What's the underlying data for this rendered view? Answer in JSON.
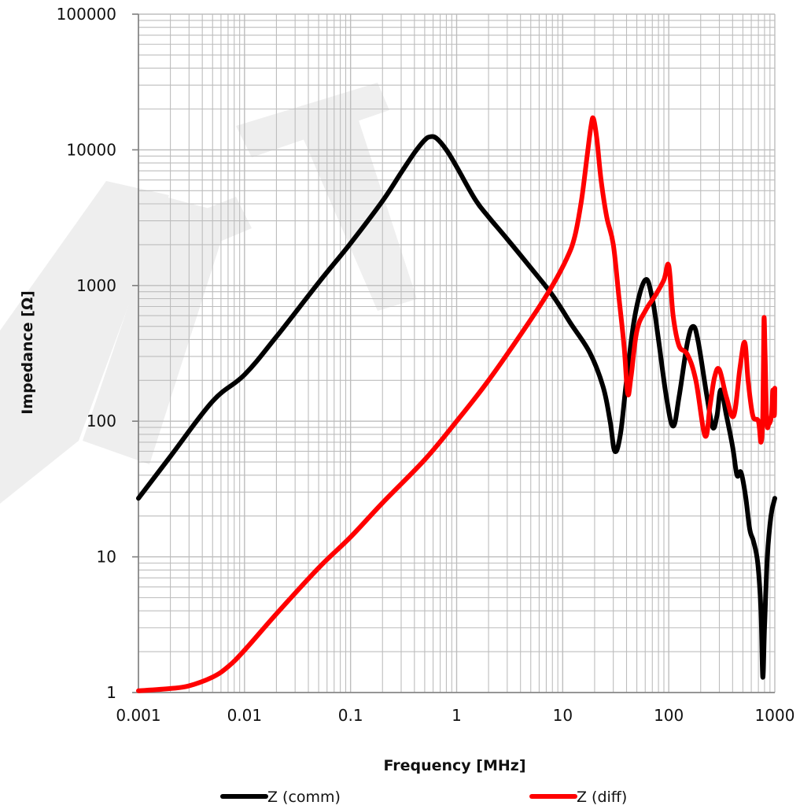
{
  "chart_data": {
    "type": "line",
    "x_scale": "log",
    "y_scale": "log",
    "xlabel": "Frequency [MHz]",
    "ylabel": "Impedance [Ω]",
    "xlim": [
      0.001,
      1000
    ],
    "ylim": [
      1,
      100000
    ],
    "x_ticks": [
      "0.001",
      "0.01",
      "0.1",
      "1",
      "10",
      "100",
      "1000"
    ],
    "y_ticks": [
      "1",
      "10",
      "100",
      "1000",
      "10000",
      "100000"
    ],
    "grid": true,
    "legend_position": "bottom",
    "watermark": "DRAFT",
    "series": [
      {
        "name": "Z (comm)",
        "color": "#000000",
        "points": [
          [
            0.001,
            27
          ],
          [
            0.002,
            55
          ],
          [
            0.005,
            140
          ],
          [
            0.01,
            220
          ],
          [
            0.02,
            420
          ],
          [
            0.05,
            1050
          ],
          [
            0.1,
            2050
          ],
          [
            0.2,
            4200
          ],
          [
            0.3,
            6800
          ],
          [
            0.4,
            9500
          ],
          [
            0.5,
            11800
          ],
          [
            0.57,
            12500
          ],
          [
            0.65,
            12100
          ],
          [
            0.8,
            10000
          ],
          [
            1,
            7500
          ],
          [
            1.5,
            4300
          ],
          [
            2,
            3200
          ],
          [
            3,
            2200
          ],
          [
            5,
            1350
          ],
          [
            8,
            850
          ],
          [
            12,
            520
          ],
          [
            18,
            320
          ],
          [
            24,
            180
          ],
          [
            28,
            100
          ],
          [
            31,
            60
          ],
          [
            35,
            80
          ],
          [
            40,
            200
          ],
          [
            48,
            600
          ],
          [
            60,
            1100
          ],
          [
            70,
            800
          ],
          [
            80,
            400
          ],
          [
            95,
            150
          ],
          [
            110,
            92
          ],
          [
            125,
            150
          ],
          [
            150,
            380
          ],
          [
            170,
            500
          ],
          [
            190,
            380
          ],
          [
            230,
            150
          ],
          [
            260,
            90
          ],
          [
            285,
            110
          ],
          [
            310,
            170
          ],
          [
            350,
            110
          ],
          [
            400,
            65
          ],
          [
            440,
            40
          ],
          [
            480,
            42
          ],
          [
            530,
            28
          ],
          [
            580,
            16
          ],
          [
            630,
            13
          ],
          [
            690,
            9
          ],
          [
            740,
            4
          ],
          [
            770,
            1.3
          ],
          [
            800,
            3
          ],
          [
            850,
            10
          ],
          [
            920,
            20
          ],
          [
            1000,
            27
          ]
        ]
      },
      {
        "name": "Z (diff)",
        "color": "#ff0000",
        "points": [
          [
            0.001,
            1.03
          ],
          [
            0.002,
            1.07
          ],
          [
            0.003,
            1.12
          ],
          [
            0.005,
            1.3
          ],
          [
            0.007,
            1.55
          ],
          [
            0.01,
            2.05
          ],
          [
            0.02,
            3.8
          ],
          [
            0.05,
            8.3
          ],
          [
            0.1,
            14
          ],
          [
            0.2,
            25
          ],
          [
            0.5,
            52
          ],
          [
            1,
            100
          ],
          [
            2,
            200
          ],
          [
            5,
            560
          ],
          [
            8,
            1000
          ],
          [
            11,
            1600
          ],
          [
            13,
            2300
          ],
          [
            15,
            4200
          ],
          [
            17,
            9000
          ],
          [
            18.5,
            15000
          ],
          [
            19.5,
            17000
          ],
          [
            21,
            12000
          ],
          [
            23,
            6000
          ],
          [
            26,
            3200
          ],
          [
            30,
            2000
          ],
          [
            34,
            800
          ],
          [
            38,
            350
          ],
          [
            41,
            160
          ],
          [
            44,
            210
          ],
          [
            50,
            460
          ],
          [
            60,
            650
          ],
          [
            75,
            850
          ],
          [
            90,
            1100
          ],
          [
            100,
            1400
          ],
          [
            110,
            600
          ],
          [
            125,
            360
          ],
          [
            150,
            310
          ],
          [
            180,
            200
          ],
          [
            220,
            78
          ],
          [
            245,
            130
          ],
          [
            270,
            210
          ],
          [
            300,
            240
          ],
          [
            350,
            150
          ],
          [
            410,
            110
          ],
          [
            470,
            250
          ],
          [
            520,
            380
          ],
          [
            560,
            200
          ],
          [
            620,
            110
          ],
          [
            700,
            100
          ],
          [
            740,
            70
          ],
          [
            770,
            110
          ],
          [
            790,
            560
          ],
          [
            810,
            300
          ],
          [
            840,
            100
          ],
          [
            880,
            95
          ],
          [
            930,
            110
          ],
          [
            960,
            170
          ],
          [
            990,
            110
          ],
          [
            1000,
            175
          ]
        ]
      }
    ]
  }
}
